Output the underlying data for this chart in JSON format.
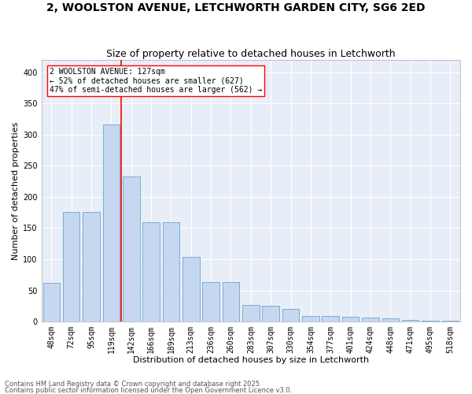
{
  "title1": "2, WOOLSTON AVENUE, LETCHWORTH GARDEN CITY, SG6 2ED",
  "title2": "Size of property relative to detached houses in Letchworth",
  "xlabel": "Distribution of detached houses by size in Letchworth",
  "ylabel": "Number of detached properties",
  "categories": [
    "48sqm",
    "72sqm",
    "95sqm",
    "119sqm",
    "142sqm",
    "166sqm",
    "189sqm",
    "213sqm",
    "236sqm",
    "260sqm",
    "283sqm",
    "307sqm",
    "330sqm",
    "354sqm",
    "377sqm",
    "401sqm",
    "424sqm",
    "448sqm",
    "471sqm",
    "495sqm",
    "518sqm"
  ],
  "values": [
    62,
    176,
    176,
    316,
    233,
    160,
    160,
    104,
    63,
    63,
    27,
    26,
    20,
    9,
    9,
    8,
    6,
    5,
    3,
    2,
    1
  ],
  "bar_color": "#c5d8f0",
  "bar_edge_color": "#7aadd4",
  "annotation_text": "2 WOOLSTON AVENUE: 127sqm\n← 52% of detached houses are smaller (627)\n47% of semi-detached houses are larger (562) →",
  "vline_x_index": 3.5,
  "vline_color": "red",
  "annotation_box_color": "white",
  "annotation_box_edge_color": "red",
  "bg_color": "#ffffff",
  "plot_bg_color": "#e8eef8",
  "grid_color": "#ffffff",
  "footer1": "Contains HM Land Registry data © Crown copyright and database right 2025.",
  "footer2": "Contains public sector information licensed under the Open Government Licence v3.0.",
  "ylim": [
    0,
    420
  ],
  "yticks": [
    0,
    50,
    100,
    150,
    200,
    250,
    300,
    350,
    400
  ],
  "title1_fontsize": 10,
  "title2_fontsize": 9,
  "xlabel_fontsize": 8,
  "ylabel_fontsize": 8,
  "tick_fontsize": 7,
  "annotation_fontsize": 7,
  "footer_fontsize": 6
}
